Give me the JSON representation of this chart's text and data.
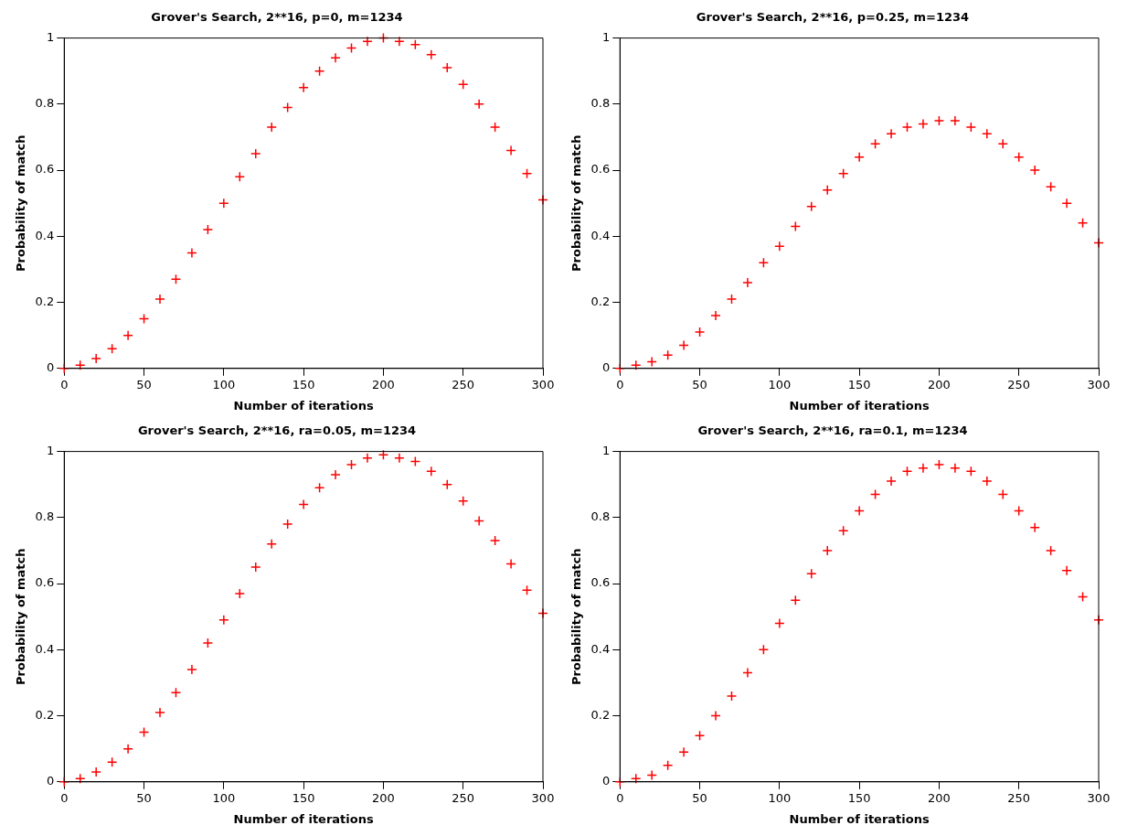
{
  "chart_data": [
    {
      "type": "scatter",
      "title": "Grover's Search, 2**16, p=0, m=1234",
      "xlabel": "Number of iterations",
      "ylabel": "Probability of match",
      "x": [
        0,
        10,
        20,
        30,
        40,
        50,
        60,
        70,
        80,
        90,
        100,
        110,
        120,
        130,
        140,
        150,
        160,
        170,
        180,
        190,
        200,
        210,
        220,
        230,
        240,
        250,
        260,
        270,
        280,
        290,
        300
      ],
      "series": [
        {
          "color": "#ff0000",
          "values": [
            0,
            0.01,
            0.03,
            0.06,
            0.1,
            0.15,
            0.21,
            0.27,
            0.35,
            0.42,
            0.5,
            0.58,
            0.65,
            0.73,
            0.79,
            0.85,
            0.9,
            0.94,
            0.97,
            0.99,
            1,
            0.99,
            0.98,
            0.95,
            0.91,
            0.86,
            0.8,
            0.73,
            0.66,
            0.59,
            0.51
          ]
        }
      ],
      "xlim": [
        0,
        300
      ],
      "xticks": [
        0,
        50,
        100,
        150,
        200,
        250,
        300
      ],
      "ylim": [
        0,
        1
      ],
      "yticks": [
        0,
        0.2,
        0.4,
        0.6,
        0.8,
        1
      ],
      "grid": false,
      "legend": false,
      "marker": "cross"
    },
    {
      "type": "scatter",
      "title": "Grover's Search, 2**16, p=0.25, m=1234",
      "xlabel": "Number of iterations",
      "ylabel": "Probability of match",
      "x": [
        0,
        10,
        20,
        30,
        40,
        50,
        60,
        70,
        80,
        90,
        100,
        110,
        120,
        130,
        140,
        150,
        160,
        170,
        180,
        190,
        200,
        210,
        220,
        230,
        240,
        250,
        260,
        270,
        280,
        290,
        300
      ],
      "series": [
        {
          "color": "#ff0000",
          "values": [
            0,
            0.01,
            0.02,
            0.04,
            0.07,
            0.11,
            0.16,
            0.21,
            0.26,
            0.32,
            0.37,
            0.43,
            0.49,
            0.54,
            0.59,
            0.64,
            0.68,
            0.71,
            0.73,
            0.74,
            0.75,
            0.75,
            0.73,
            0.71,
            0.68,
            0.64,
            0.6,
            0.55,
            0.5,
            0.44,
            0.38
          ]
        }
      ],
      "xlim": [
        0,
        300
      ],
      "xticks": [
        0,
        50,
        100,
        150,
        200,
        250,
        300
      ],
      "ylim": [
        0,
        1
      ],
      "yticks": [
        0,
        0.2,
        0.4,
        0.6,
        0.8,
        1
      ],
      "grid": false,
      "legend": false,
      "marker": "cross"
    },
    {
      "type": "scatter",
      "title": "Grover's Search, 2**16, ra=0.05, m=1234",
      "xlabel": "Number of iterations",
      "ylabel": "Probability of match",
      "x": [
        0,
        10,
        20,
        30,
        40,
        50,
        60,
        70,
        80,
        90,
        100,
        110,
        120,
        130,
        140,
        150,
        160,
        170,
        180,
        190,
        200,
        210,
        220,
        230,
        240,
        250,
        260,
        270,
        280,
        290,
        300
      ],
      "series": [
        {
          "color": "#ff0000",
          "values": [
            0,
            0.01,
            0.03,
            0.06,
            0.1,
            0.15,
            0.21,
            0.27,
            0.34,
            0.42,
            0.49,
            0.57,
            0.65,
            0.72,
            0.78,
            0.84,
            0.89,
            0.93,
            0.96,
            0.98,
            0.99,
            0.98,
            0.97,
            0.94,
            0.9,
            0.85,
            0.79,
            0.73,
            0.66,
            0.58,
            0.51
          ]
        }
      ],
      "xlim": [
        0,
        300
      ],
      "xticks": [
        0,
        50,
        100,
        150,
        200,
        250,
        300
      ],
      "ylim": [
        0,
        1
      ],
      "yticks": [
        0,
        0.2,
        0.4,
        0.6,
        0.8,
        1
      ],
      "grid": false,
      "legend": false,
      "marker": "cross"
    },
    {
      "type": "scatter",
      "title": "Grover's Search, 2**16, ra=0.1, m=1234",
      "xlabel": "Number of iterations",
      "ylabel": "Probability of match",
      "x": [
        0,
        10,
        20,
        30,
        40,
        50,
        60,
        70,
        80,
        90,
        100,
        110,
        120,
        130,
        140,
        150,
        160,
        170,
        180,
        190,
        200,
        210,
        220,
        230,
        240,
        250,
        260,
        270,
        280,
        290,
        300
      ],
      "series": [
        {
          "color": "#ff0000",
          "values": [
            0,
            0.01,
            0.02,
            0.05,
            0.09,
            0.14,
            0.2,
            0.26,
            0.33,
            0.4,
            0.48,
            0.55,
            0.63,
            0.7,
            0.76,
            0.82,
            0.87,
            0.91,
            0.94,
            0.95,
            0.96,
            0.95,
            0.94,
            0.91,
            0.87,
            0.82,
            0.77,
            0.7,
            0.64,
            0.56,
            0.49
          ]
        }
      ],
      "xlim": [
        0,
        300
      ],
      "xticks": [
        0,
        50,
        100,
        150,
        200,
        250,
        300
      ],
      "ylim": [
        0,
        1
      ],
      "yticks": [
        0,
        0.2,
        0.4,
        0.6,
        0.8,
        1
      ],
      "grid": false,
      "legend": false,
      "marker": "cross"
    }
  ]
}
